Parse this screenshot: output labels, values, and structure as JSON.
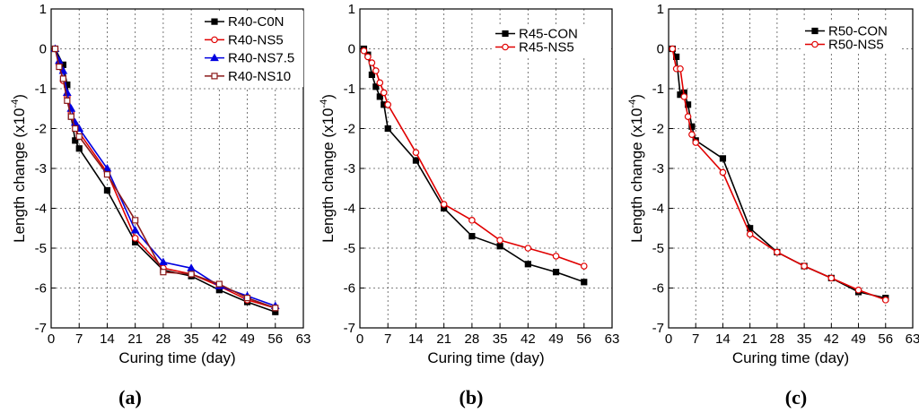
{
  "chart_data": [
    {
      "type": "line",
      "panel_label": "(a)",
      "xlabel": "Curing time (day)",
      "ylabel": "Length change (x10",
      "ylabel_exp": "-4",
      "ylabel_close": ")",
      "xlim": [
        0,
        63
      ],
      "ylim": [
        -7,
        1
      ],
      "xticks": [
        0,
        7,
        14,
        21,
        28,
        35,
        42,
        49,
        56,
        63
      ],
      "yticks": [
        -7,
        -6,
        -5,
        -4,
        -3,
        -2,
        -1,
        0,
        1
      ],
      "grid": true,
      "legend_position": "top-right",
      "series": [
        {
          "name": "R40-C0N",
          "color": "#000000",
          "marker": "square-filled",
          "x": [
            1,
            3,
            4,
            5,
            6,
            7,
            14,
            21,
            28,
            35,
            42,
            49,
            56
          ],
          "y": [
            0,
            -0.4,
            -0.9,
            -1.7,
            -2.3,
            -2.5,
            -3.55,
            -4.85,
            -5.55,
            -5.7,
            -6.05,
            -6.35,
            -6.6
          ]
        },
        {
          "name": "R40-NS5",
          "color": "#e00000",
          "marker": "circle-open",
          "x": [
            1,
            2,
            3,
            4,
            5,
            6,
            7,
            14,
            21,
            28,
            35,
            42,
            49,
            56
          ],
          "y": [
            0,
            -0.4,
            -0.8,
            -1.2,
            -1.6,
            -1.9,
            -2.1,
            -3.1,
            -4.75,
            -5.5,
            -5.65,
            -5.95,
            -6.3,
            -6.5
          ]
        },
        {
          "name": "R40-NS7.5",
          "color": "#0000e0",
          "marker": "triangle-filled",
          "x": [
            1,
            2,
            3,
            4,
            5,
            6,
            7,
            14,
            21,
            28,
            35,
            42,
            49,
            56
          ],
          "y": [
            0,
            -0.3,
            -0.55,
            -1.1,
            -1.5,
            -1.85,
            -2.0,
            -3.0,
            -4.55,
            -5.35,
            -5.5,
            -5.95,
            -6.2,
            -6.45
          ]
        },
        {
          "name": "R40-NS10",
          "color": "#8b1a1a",
          "marker": "square-open",
          "x": [
            1,
            2,
            3,
            4,
            5,
            6,
            7,
            14,
            21,
            28,
            35,
            42,
            49,
            56
          ],
          "y": [
            0,
            -0.45,
            -0.75,
            -1.3,
            -1.7,
            -2.0,
            -2.2,
            -3.15,
            -4.3,
            -5.6,
            -5.65,
            -5.9,
            -6.25,
            -6.5
          ]
        }
      ]
    },
    {
      "type": "line",
      "panel_label": "(b)",
      "xlabel": "Curing time (day)",
      "ylabel": "Length change (x10",
      "ylabel_exp": "-4",
      "ylabel_close": ")",
      "xlim": [
        0,
        63
      ],
      "ylim": [
        -7,
        1
      ],
      "xticks": [
        0,
        7,
        14,
        21,
        28,
        35,
        42,
        49,
        56,
        63
      ],
      "yticks": [
        -7,
        -6,
        -5,
        -4,
        -3,
        -2,
        -1,
        0,
        1
      ],
      "grid": true,
      "legend_position": "top-right",
      "series": [
        {
          "name": "R45-CON",
          "color": "#000000",
          "marker": "square-filled",
          "x": [
            1,
            2,
            3,
            4,
            5,
            6,
            7,
            14,
            21,
            28,
            35,
            42,
            49,
            56
          ],
          "y": [
            0,
            -0.15,
            -0.65,
            -0.95,
            -1.2,
            -1.4,
            -2.0,
            -2.8,
            -4.0,
            -4.7,
            -4.95,
            -5.4,
            -5.6,
            -5.85
          ]
        },
        {
          "name": "R45-NS5",
          "color": "#e00000",
          "marker": "circle-open",
          "x": [
            1,
            2,
            3,
            4,
            5,
            6,
            7,
            14,
            21,
            28,
            35,
            42,
            49,
            56
          ],
          "y": [
            -0.05,
            -0.2,
            -0.35,
            -0.55,
            -0.85,
            -1.1,
            -1.4,
            -2.6,
            -3.9,
            -4.3,
            -4.8,
            -5.0,
            -5.2,
            -5.45
          ]
        }
      ]
    },
    {
      "type": "line",
      "panel_label": "(c)",
      "xlabel": "Curing time (day)",
      "ylabel": "Length change (x10",
      "ylabel_exp": "-4",
      "ylabel_close": ")",
      "xlim": [
        0,
        63
      ],
      "ylim": [
        -7,
        1
      ],
      "xticks": [
        0,
        7,
        14,
        21,
        28,
        35,
        42,
        49,
        56,
        63
      ],
      "yticks": [
        -7,
        -6,
        -5,
        -4,
        -3,
        -2,
        -1,
        0,
        1
      ],
      "grid": true,
      "legend_position": "top-left",
      "series": [
        {
          "name": "R50-CON",
          "color": "#000000",
          "marker": "square-filled",
          "x": [
            1,
            2,
            3,
            4,
            5,
            6,
            7,
            14,
            21,
            28,
            35,
            42,
            49,
            56
          ],
          "y": [
            0,
            -0.2,
            -1.15,
            -1.1,
            -1.4,
            -1.95,
            -2.3,
            -2.75,
            -4.5,
            -5.1,
            -5.45,
            -5.75,
            -6.1,
            -6.25
          ]
        },
        {
          "name": "R50-NS5",
          "color": "#e00000",
          "marker": "circle-open",
          "x": [
            1,
            2,
            3,
            4,
            5,
            6,
            7,
            14,
            21,
            28,
            35,
            42,
            49,
            56
          ],
          "y": [
            0,
            -0.5,
            -0.5,
            -1.2,
            -1.7,
            -2.15,
            -2.35,
            -3.1,
            -4.65,
            -5.1,
            -5.45,
            -5.75,
            -6.05,
            -6.3
          ]
        }
      ]
    }
  ]
}
